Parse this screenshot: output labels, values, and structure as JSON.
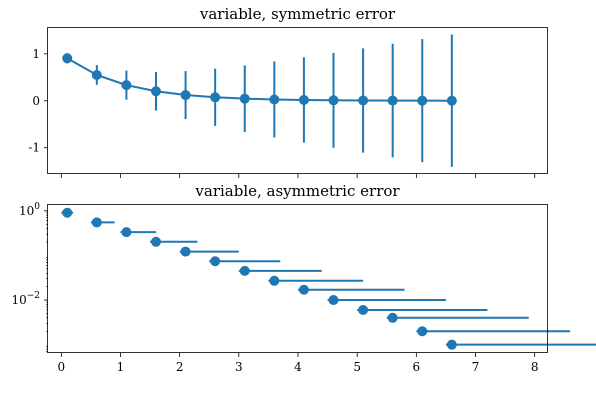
{
  "chart_data": [
    {
      "type": "line",
      "title": "variable, symmetric error",
      "x": [
        0.1,
        0.6,
        1.1,
        1.6,
        2.1,
        2.6,
        3.1,
        3.6,
        4.1,
        4.6,
        5.1,
        5.6,
        6.1,
        6.6
      ],
      "y": [
        0.905,
        0.549,
        0.333,
        0.202,
        0.122,
        0.074,
        0.045,
        0.027,
        0.017,
        0.01,
        0.006,
        0.004,
        0.002,
        0.001
      ],
      "yerr": [
        0.11,
        0.21,
        0.31,
        0.41,
        0.51,
        0.61,
        0.71,
        0.81,
        0.91,
        1.01,
        1.11,
        1.21,
        1.31,
        1.41
      ],
      "xlim": [
        -0.225,
        8.225
      ],
      "ylim": [
        -1.56,
        1.55
      ],
      "yticks": [
        1,
        0,
        -1
      ],
      "ytick_labels": [
        "1",
        "0",
        "-1"
      ],
      "color": "#1f77b4",
      "grid": false
    },
    {
      "type": "scatter",
      "title": "variable, asymmetric error",
      "yscale": "log",
      "x": [
        0.1,
        0.6,
        1.1,
        1.6,
        2.1,
        2.6,
        3.1,
        3.6,
        4.1,
        4.6,
        5.1,
        5.6,
        6.1,
        6.6
      ],
      "y": [
        0.905,
        0.549,
        0.333,
        0.202,
        0.122,
        0.074,
        0.045,
        0.027,
        0.017,
        0.01,
        0.006,
        0.004,
        0.002,
        0.001
      ],
      "xerr_lower": [
        0.1,
        0.1,
        0.1,
        0.1,
        0.1,
        0.1,
        0.1,
        0.1,
        0.1,
        0.1,
        0.1,
        0.1,
        0.1,
        0.1
      ],
      "xerr_upper": [
        0.1,
        0.3,
        0.5,
        0.7,
        0.9,
        1.1,
        1.3,
        1.5,
        1.7,
        1.9,
        2.1,
        2.3,
        2.5,
        2.7
      ],
      "xlim": [
        -0.225,
        8.225
      ],
      "ylim": [
        0.00065,
        1.35
      ],
      "yticks": [
        1,
        0.01
      ],
      "xticks": [
        0,
        1,
        2,
        3,
        4,
        5,
        6,
        7,
        8
      ],
      "xtick_labels": [
        "0",
        "1",
        "2",
        "3",
        "4",
        "5",
        "6",
        "7",
        "8"
      ],
      "color": "#1f77b4",
      "grid": false
    }
  ]
}
